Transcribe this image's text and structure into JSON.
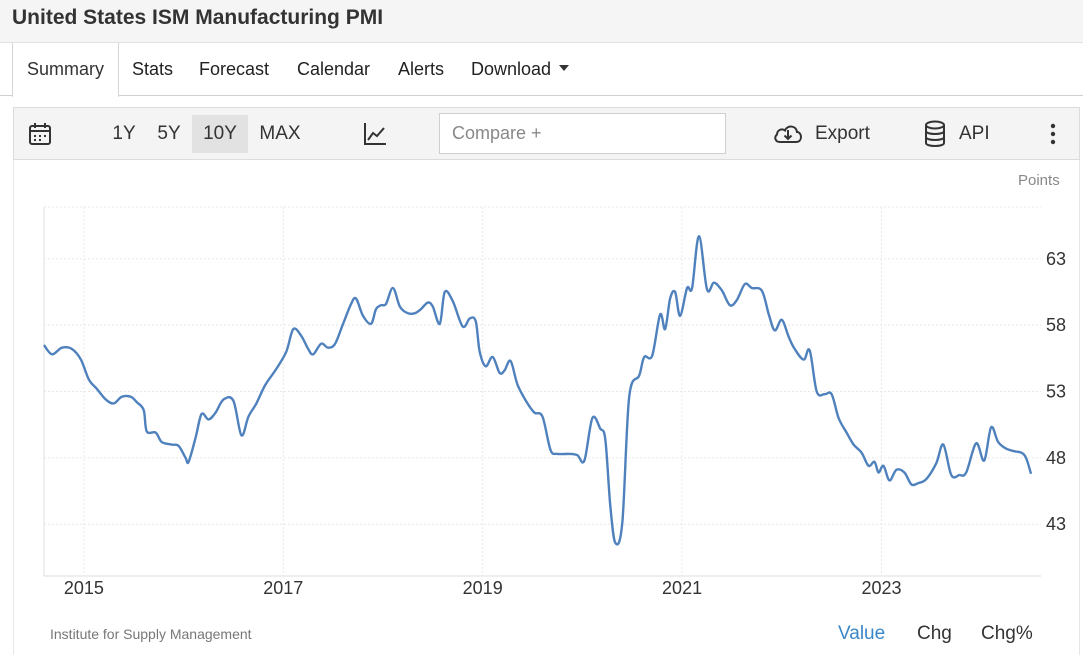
{
  "header": {
    "title": "United States ISM Manufacturing PMI"
  },
  "tabs": [
    {
      "label": "Summary"
    },
    {
      "label": "Stats"
    },
    {
      "label": "Forecast"
    },
    {
      "label": "Calendar"
    },
    {
      "label": "Alerts"
    },
    {
      "label": "Download"
    }
  ],
  "toolbar": {
    "ranges": [
      "1Y",
      "5Y",
      "10Y",
      "MAX"
    ],
    "active_range": "10Y",
    "compare_placeholder": "Compare +",
    "export_label": "Export",
    "api_label": "API"
  },
  "footer": {
    "source": "Institute for Supply Management",
    "views": [
      "Value",
      "Chg",
      "Chg%"
    ],
    "active_view": "Value"
  },
  "colors": {
    "line": "#4f81bd",
    "active_view": "#3a87c9",
    "grid": "#e8e8e8"
  },
  "chart_data": {
    "type": "line",
    "title": "",
    "unit": "Points",
    "xlabel": "",
    "ylabel": "",
    "xlim": [
      2014.6,
      2024.6
    ],
    "ylim": [
      39.1,
      66.9
    ],
    "y_ticks": [
      43,
      48,
      53,
      58,
      63
    ],
    "x_ticks": [
      2015,
      2017,
      2019,
      2021,
      2023
    ],
    "x_tick_labels": [
      "2015",
      "2017",
      "2019",
      "2021",
      "2023"
    ],
    "grid": true,
    "series": [
      {
        "name": "",
        "points": [
          [
            2014.6,
            56.5
          ],
          [
            2014.68,
            55.8
          ],
          [
            2014.78,
            56.3
          ],
          [
            2014.88,
            56.2
          ],
          [
            2014.97,
            55.4
          ],
          [
            2015.05,
            53.9
          ],
          [
            2015.13,
            53.2
          ],
          [
            2015.22,
            52.4
          ],
          [
            2015.3,
            52.1
          ],
          [
            2015.38,
            52.6
          ],
          [
            2015.47,
            52.6
          ],
          [
            2015.53,
            52.2
          ],
          [
            2015.6,
            51.6
          ],
          [
            2015.63,
            50.0
          ],
          [
            2015.72,
            49.9
          ],
          [
            2015.78,
            49.2
          ],
          [
            2015.88,
            49.0
          ],
          [
            2015.95,
            48.9
          ],
          [
            2016.02,
            48.0
          ],
          [
            2016.05,
            47.7
          ],
          [
            2016.12,
            49.5
          ],
          [
            2016.18,
            51.3
          ],
          [
            2016.25,
            50.9
          ],
          [
            2016.32,
            51.4
          ],
          [
            2016.4,
            52.4
          ],
          [
            2016.5,
            52.3
          ],
          [
            2016.58,
            49.7
          ],
          [
            2016.65,
            51.1
          ],
          [
            2016.73,
            52.1
          ],
          [
            2016.82,
            53.5
          ],
          [
            2016.93,
            54.7
          ],
          [
            2017.03,
            56.0
          ],
          [
            2017.1,
            57.7
          ],
          [
            2017.18,
            57.2
          ],
          [
            2017.25,
            56.2
          ],
          [
            2017.3,
            55.8
          ],
          [
            2017.38,
            56.6
          ],
          [
            2017.45,
            56.3
          ],
          [
            2017.52,
            56.6
          ],
          [
            2017.6,
            58.1
          ],
          [
            2017.68,
            59.6
          ],
          [
            2017.73,
            60.0
          ],
          [
            2017.8,
            58.7
          ],
          [
            2017.88,
            58.1
          ],
          [
            2017.93,
            59.2
          ],
          [
            2017.98,
            59.5
          ],
          [
            2018.03,
            59.6
          ],
          [
            2018.1,
            60.8
          ],
          [
            2018.17,
            59.4
          ],
          [
            2018.25,
            58.9
          ],
          [
            2018.32,
            58.9
          ],
          [
            2018.38,
            59.2
          ],
          [
            2018.45,
            59.7
          ],
          [
            2018.5,
            59.4
          ],
          [
            2018.57,
            58.1
          ],
          [
            2018.62,
            60.5
          ],
          [
            2018.7,
            59.8
          ],
          [
            2018.8,
            57.9
          ],
          [
            2018.87,
            58.5
          ],
          [
            2018.93,
            58.3
          ],
          [
            2018.97,
            56.0
          ],
          [
            2019.03,
            54.9
          ],
          [
            2019.1,
            55.6
          ],
          [
            2019.17,
            54.4
          ],
          [
            2019.22,
            54.6
          ],
          [
            2019.28,
            55.3
          ],
          [
            2019.35,
            53.5
          ],
          [
            2019.45,
            52.1
          ],
          [
            2019.52,
            51.4
          ],
          [
            2019.6,
            51.1
          ],
          [
            2019.68,
            48.6
          ],
          [
            2019.75,
            48.3
          ],
          [
            2019.87,
            48.3
          ],
          [
            2019.95,
            48.2
          ],
          [
            2020.02,
            47.8
          ],
          [
            2020.1,
            51.0
          ],
          [
            2020.18,
            50.2
          ],
          [
            2020.23,
            49.4
          ],
          [
            2020.28,
            44.4
          ],
          [
            2020.33,
            41.6
          ],
          [
            2020.4,
            43.1
          ],
          [
            2020.47,
            52.6
          ],
          [
            2020.57,
            54.2
          ],
          [
            2020.62,
            55.6
          ],
          [
            2020.7,
            55.7
          ],
          [
            2020.78,
            58.8
          ],
          [
            2020.83,
            57.7
          ],
          [
            2020.88,
            60.0
          ],
          [
            2020.93,
            60.5
          ],
          [
            2020.98,
            58.7
          ],
          [
            2021.05,
            60.8
          ],
          [
            2021.1,
            60.8
          ],
          [
            2021.17,
            64.7
          ],
          [
            2021.25,
            60.7
          ],
          [
            2021.32,
            61.2
          ],
          [
            2021.4,
            60.6
          ],
          [
            2021.48,
            59.5
          ],
          [
            2021.55,
            59.9
          ],
          [
            2021.63,
            61.1
          ],
          [
            2021.7,
            60.8
          ],
          [
            2021.8,
            60.6
          ],
          [
            2021.87,
            58.8
          ],
          [
            2021.93,
            57.6
          ],
          [
            2022.0,
            58.4
          ],
          [
            2022.07,
            57.1
          ],
          [
            2022.13,
            56.2
          ],
          [
            2022.22,
            55.4
          ],
          [
            2022.28,
            56.1
          ],
          [
            2022.35,
            53.0
          ],
          [
            2022.43,
            52.8
          ],
          [
            2022.5,
            52.8
          ],
          [
            2022.57,
            51.0
          ],
          [
            2022.65,
            49.9
          ],
          [
            2022.72,
            49.0
          ],
          [
            2022.8,
            48.4
          ],
          [
            2022.87,
            47.4
          ],
          [
            2022.93,
            47.7
          ],
          [
            2022.97,
            46.9
          ],
          [
            2023.02,
            47.4
          ],
          [
            2023.08,
            46.3
          ],
          [
            2023.15,
            47.1
          ],
          [
            2023.23,
            46.9
          ],
          [
            2023.3,
            46.0
          ],
          [
            2023.37,
            46.1
          ],
          [
            2023.45,
            46.4
          ],
          [
            2023.55,
            47.6
          ],
          [
            2023.62,
            49.0
          ],
          [
            2023.7,
            46.7
          ],
          [
            2023.78,
            46.7
          ],
          [
            2023.85,
            46.9
          ],
          [
            2023.95,
            49.1
          ],
          [
            2024.03,
            47.8
          ],
          [
            2024.1,
            50.3
          ],
          [
            2024.17,
            49.2
          ],
          [
            2024.25,
            48.7
          ],
          [
            2024.33,
            48.5
          ],
          [
            2024.4,
            48.4
          ],
          [
            2024.45,
            48.0
          ],
          [
            2024.5,
            46.8
          ]
        ]
      }
    ]
  }
}
